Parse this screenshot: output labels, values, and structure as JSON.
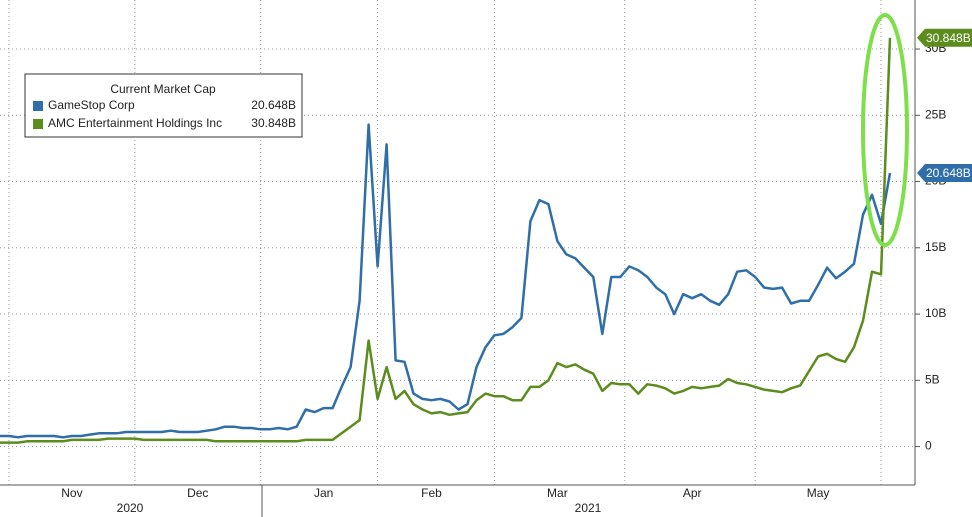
{
  "chart_data": {
    "type": "line",
    "legend_title": "Current Market Cap",
    "years": [
      "2020",
      "2021"
    ],
    "categories": [
      null,
      null,
      null,
      null,
      null,
      null,
      null,
      null,
      "Nov",
      null,
      null,
      null,
      null,
      null,
      null,
      null,
      null,
      null,
      null,
      null,
      null,
      null,
      "Dec",
      null,
      null,
      null,
      null,
      null,
      null,
      null,
      null,
      null,
      null,
      null,
      null,
      null,
      "Jan",
      null,
      null,
      null,
      null,
      null,
      null,
      null,
      null,
      null,
      null,
      null,
      "Feb",
      null,
      null,
      null,
      null,
      null,
      null,
      null,
      null,
      null,
      null,
      null,
      null,
      null,
      "Mar",
      null,
      null,
      null,
      null,
      null,
      null,
      null,
      null,
      null,
      null,
      null,
      null,
      null,
      null,
      "Apr",
      null,
      null,
      null,
      null,
      null,
      null,
      null,
      null,
      null,
      null,
      null,
      null,
      null,
      "May",
      null,
      null,
      null,
      null,
      null,
      null,
      null,
      null
    ],
    "series": [
      {
        "name": "GameStop Corp",
        "color": "#2f6ea8",
        "values": [
          0.8,
          0.8,
          0.7,
          0.8,
          0.8,
          0.8,
          0.8,
          0.7,
          0.8,
          0.8,
          0.9,
          1.0,
          1.0,
          1.0,
          1.1,
          1.1,
          1.1,
          1.1,
          1.1,
          1.2,
          1.1,
          1.1,
          1.1,
          1.2,
          1.3,
          1.5,
          1.5,
          1.4,
          1.4,
          1.3,
          1.3,
          1.4,
          1.3,
          1.5,
          2.8,
          2.6,
          2.9,
          2.9,
          4.5,
          6,
          11,
          24.3,
          13.6,
          22.8,
          6.5,
          6.4,
          4,
          3.6,
          3.5,
          3.6,
          3.4,
          2.8,
          3.2,
          6,
          7.5,
          8.4,
          8.5,
          9,
          9.7,
          17,
          18.6,
          18.3,
          15.5,
          14.5,
          14.2,
          13.5,
          12.8,
          8.5,
          12.8,
          12.8,
          13.6,
          13.3,
          12.8,
          12,
          11.5,
          10,
          11.5,
          11.2,
          11.5,
          11,
          10.7,
          11.5,
          13.2,
          13.3,
          12.8,
          12,
          11.9,
          12,
          10.8,
          11,
          11,
          12.2,
          13.5,
          12.7,
          13.2,
          13.8,
          17.5,
          19,
          16.8,
          20.648
        ],
        "value_labels": [
          null,
          null,
          null,
          null,
          null,
          null,
          null,
          null,
          null,
          null,
          null,
          null,
          null,
          null,
          null,
          null,
          null,
          null,
          null,
          null,
          null,
          null,
          null,
          null,
          null,
          null,
          null,
          null,
          null,
          null,
          null,
          null,
          null,
          null,
          null,
          null,
          null,
          null,
          null,
          null,
          null,
          null,
          null,
          null,
          null,
          null,
          null,
          null,
          null,
          null,
          null,
          null,
          null,
          null,
          null,
          null,
          null,
          null,
          null,
          null,
          null,
          null,
          null,
          null,
          null,
          null,
          null,
          null,
          null,
          null,
          null,
          null,
          null,
          null,
          null,
          null,
          null,
          null,
          null,
          null,
          null,
          null,
          null,
          null,
          null,
          null,
          null,
          null,
          null,
          null,
          null,
          null,
          null,
          null,
          null,
          null,
          null,
          null,
          null,
          "20.648B"
        ]
      },
      {
        "name": "AMC Entertainment Holdings Inc",
        "color": "#5b8c1c",
        "values": [
          0.3,
          0.3,
          0.3,
          0.4,
          0.4,
          0.4,
          0.4,
          0.4,
          0.5,
          0.5,
          0.5,
          0.5,
          0.6,
          0.6,
          0.6,
          0.6,
          0.5,
          0.5,
          0.5,
          0.5,
          0.5,
          0.5,
          0.5,
          0.5,
          0.4,
          0.4,
          0.4,
          0.4,
          0.4,
          0.4,
          0.4,
          0.4,
          0.4,
          0.4,
          0.5,
          0.5,
          0.5,
          0.5,
          1.0,
          1.5,
          2,
          8,
          3.6,
          6,
          3.6,
          4.2,
          3.2,
          2.8,
          2.5,
          2.6,
          2.4,
          2.5,
          2.6,
          3.5,
          4,
          3.8,
          3.8,
          3.5,
          3.5,
          4.5,
          4.5,
          5,
          6.3,
          6,
          6.2,
          5.8,
          5.5,
          4.2,
          4.8,
          4.7,
          4.7,
          4,
          4.7,
          4.6,
          4.4,
          4,
          4.2,
          4.5,
          4.4,
          4.5,
          4.6,
          5.1,
          4.8,
          4.7,
          4.5,
          4.3,
          4.2,
          4.1,
          4.4,
          4.6,
          5.7,
          6.8,
          7,
          6.6,
          6.4,
          7.5,
          9.5,
          13.2,
          13,
          30.848
        ],
        "value_labels": [
          null,
          null,
          null,
          null,
          null,
          null,
          null,
          null,
          null,
          null,
          null,
          null,
          null,
          null,
          null,
          null,
          null,
          null,
          null,
          null,
          null,
          null,
          null,
          null,
          null,
          null,
          null,
          null,
          null,
          null,
          null,
          null,
          null,
          null,
          null,
          null,
          null,
          null,
          null,
          null,
          null,
          null,
          null,
          null,
          null,
          null,
          null,
          null,
          null,
          null,
          null,
          null,
          null,
          null,
          null,
          null,
          null,
          null,
          null,
          null,
          null,
          null,
          null,
          null,
          null,
          null,
          null,
          null,
          null,
          null,
          null,
          null,
          null,
          null,
          null,
          null,
          null,
          null,
          null,
          null,
          null,
          null,
          null,
          null,
          null,
          null,
          null,
          null,
          null,
          null,
          null,
          null,
          null,
          null,
          null,
          null,
          null,
          null,
          null,
          "30.848B"
        ]
      }
    ],
    "ylim": [
      -2.9,
      33.7
    ],
    "yticks": [
      0,
      {
        "value": 5,
        "label": "5B"
      },
      {
        "value": 10,
        "label": "10B"
      },
      {
        "value": 15,
        "label": "15B"
      },
      {
        "value": 20,
        "label": "20B"
      },
      {
        "value": 25,
        "label": "25B"
      },
      {
        "value": 30,
        "label": "30B"
      }
    ],
    "grid": true
  }
}
